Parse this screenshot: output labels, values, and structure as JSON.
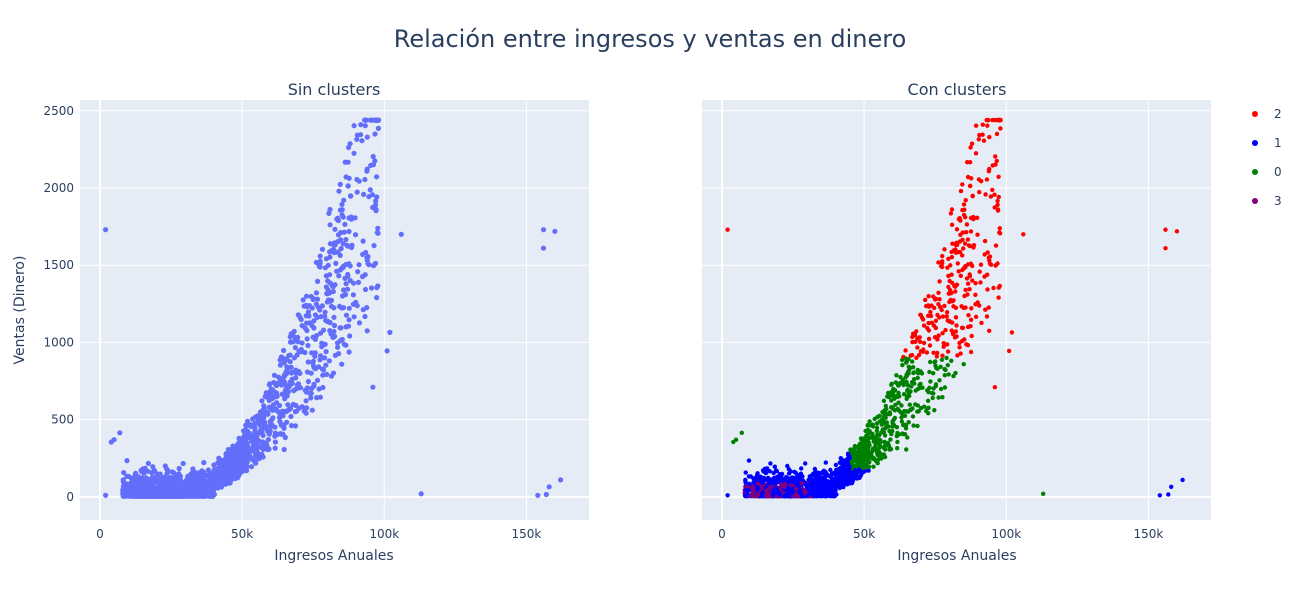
{
  "title": "Relación entre ingresos y ventas en dinero",
  "colors": {
    "paper": "#ffffff",
    "plot_bg": "#e5ecf6",
    "text": "#2a3f5f",
    "grid": "#ffffff",
    "single_series": "#636efa"
  },
  "chart_data": [
    {
      "type": "scatter",
      "subtitle": "Sin clusters",
      "xlabel": "Ingresos Anuales",
      "ylabel": "Ventas (Dinero)",
      "xlim": [
        -7000,
        172000
      ],
      "ylim": [
        -150,
        2570
      ],
      "x_ticks": [
        0,
        50000,
        100000,
        150000
      ],
      "x_tick_labels": [
        "0",
        "50k",
        "100k",
        "150k"
      ],
      "y_ticks": [
        0,
        500,
        1000,
        1500,
        2000,
        2500
      ],
      "y_tick_labels": [
        "0",
        "500",
        "1000",
        "1500",
        "2000",
        "2500"
      ],
      "grid": true,
      "series": [
        {
          "color": "#636efa",
          "points": "all"
        }
      ]
    },
    {
      "type": "scatter",
      "subtitle": "Con clusters",
      "xlabel": "Ingresos Anuales",
      "ylabel": "",
      "xlim": [
        -7000,
        172000
      ],
      "ylim": [
        -150,
        2570
      ],
      "x_ticks": [
        0,
        50000,
        100000,
        150000
      ],
      "x_tick_labels": [
        "0",
        "50k",
        "100k",
        "150k"
      ],
      "y_ticks": [
        0,
        500,
        1000,
        1500,
        2000,
        2500
      ],
      "grid": true,
      "legend_position": "top-right",
      "series": [
        {
          "name": "2",
          "color": "#ff0000"
        },
        {
          "name": "1",
          "color": "#0000ff"
        },
        {
          "name": "0",
          "color": "#008000"
        },
        {
          "name": "3",
          "color": "#800080"
        }
      ],
      "outliers": [
        {
          "x": 2000,
          "y": 1730,
          "cluster": "2"
        },
        {
          "x": 106000,
          "y": 1700,
          "cluster": "2"
        },
        {
          "x": 156000,
          "y": 1730,
          "cluster": "2"
        },
        {
          "x": 160000,
          "y": 1720,
          "cluster": "2"
        },
        {
          "x": 156000,
          "y": 1610,
          "cluster": "2"
        },
        {
          "x": 102000,
          "y": 1065,
          "cluster": "2"
        },
        {
          "x": 101000,
          "y": 945,
          "cluster": "2"
        },
        {
          "x": 96000,
          "y": 710,
          "cluster": "2"
        },
        {
          "x": 94000,
          "y": 1075,
          "cluster": "2"
        },
        {
          "x": 113000,
          "y": 20,
          "cluster": "0"
        },
        {
          "x": 5000,
          "y": 370,
          "cluster": "0"
        },
        {
          "x": 7000,
          "y": 415,
          "cluster": "0"
        },
        {
          "x": 4000,
          "y": 355,
          "cluster": "0"
        },
        {
          "x": 154000,
          "y": 10,
          "cluster": "1"
        },
        {
          "x": 157000,
          "y": 15,
          "cluster": "1"
        },
        {
          "x": 158000,
          "y": 65,
          "cluster": "1"
        },
        {
          "x": 162000,
          "y": 110,
          "cluster": "1"
        },
        {
          "x": 2000,
          "y": 10,
          "cluster": "1"
        }
      ]
    }
  ]
}
